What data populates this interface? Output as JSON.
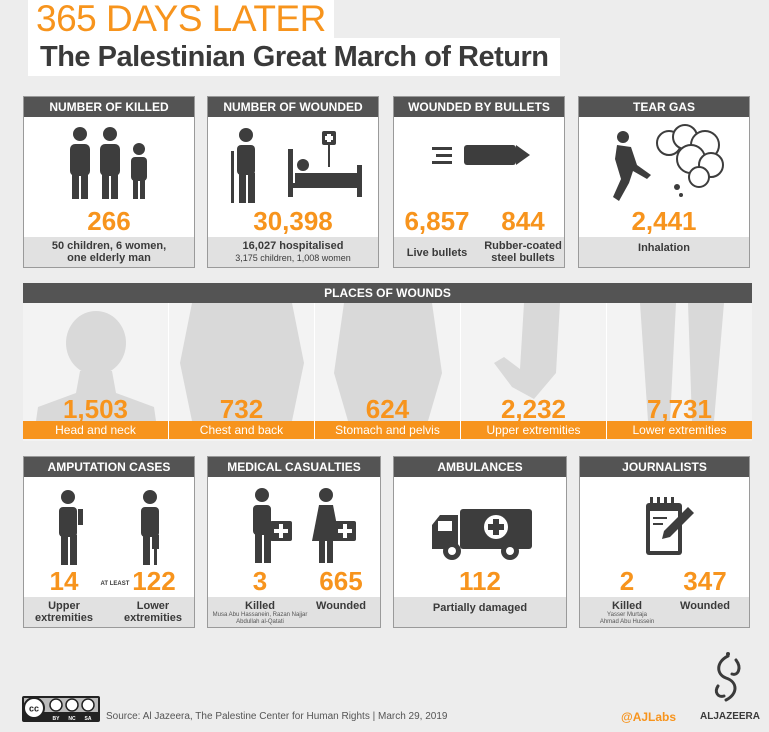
{
  "header": {
    "line1": "365 DAYS LATER",
    "line2": "The Palestinian Great March of Return"
  },
  "killed": {
    "title": "NUMBER OF KILLED",
    "value": "266",
    "sub1": "50 children, 6 women,",
    "sub2": "one elderly man"
  },
  "wounded": {
    "title": "NUMBER OF WOUNDED",
    "value": "30,398",
    "sub1": "16,027 hospitalised",
    "sub2": "3,175 children, 1,008 women"
  },
  "bullets": {
    "title": "WOUNDED BY BULLETS",
    "live_value": "6,857",
    "live_label": "Live bullets",
    "rubber_value": "844",
    "rubber_label1": "Rubber-coated",
    "rubber_label2": "steel bullets"
  },
  "teargas": {
    "title": "TEAR GAS",
    "value": "2,441",
    "label": "Inhalation"
  },
  "places": {
    "title": "PLACES OF WOUNDS",
    "items": [
      {
        "value": "1,503",
        "label": "Head and neck"
      },
      {
        "value": "732",
        "label": "Chest and back"
      },
      {
        "value": "624",
        "label": "Stomach and pelvis"
      },
      {
        "value": "2,232",
        "label": "Upper extremities"
      },
      {
        "value": "7,731",
        "label": "Lower extremities"
      }
    ]
  },
  "amputation": {
    "title": "AMPUTATION CASES",
    "upper_value": "14",
    "upper_label1": "Upper",
    "upper_label2": "extremities",
    "atleast": "AT LEAST",
    "lower_value": "122",
    "lower_label1": "Lower",
    "lower_label2": "extremities"
  },
  "medical": {
    "title": "MEDICAL CASUALTIES",
    "killed_value": "3",
    "killed_label": "Killed",
    "killed_names1": "Musa Abu Hassanein, Razan Najjar",
    "killed_names2": "Abdullah al-Qatati",
    "wounded_value": "665",
    "wounded_label": "Wounded"
  },
  "ambulances": {
    "title": "AMBULANCES",
    "value": "112",
    "label": "Partially damaged"
  },
  "journalists": {
    "title": "JOURNALISTS",
    "killed_value": "2",
    "killed_label": "Killed",
    "killed_names1": "Yasser Murtaja",
    "killed_names2": "Ahmad Abu Hussein",
    "wounded_value": "347",
    "wounded_label": "Wounded"
  },
  "footer": {
    "cc": "cc",
    "cc_by": "BY",
    "cc_nc": "NC",
    "cc_sa": "SA",
    "source": "Source: Al Jazeera, The Palestine Center for Human Rights  |  March 29, 2019",
    "handle": "@AJLabs",
    "brand": "ALJAZEERA"
  },
  "colors": {
    "accent": "#f7941d",
    "dark": "#545454",
    "icon": "#3d3d3d"
  }
}
